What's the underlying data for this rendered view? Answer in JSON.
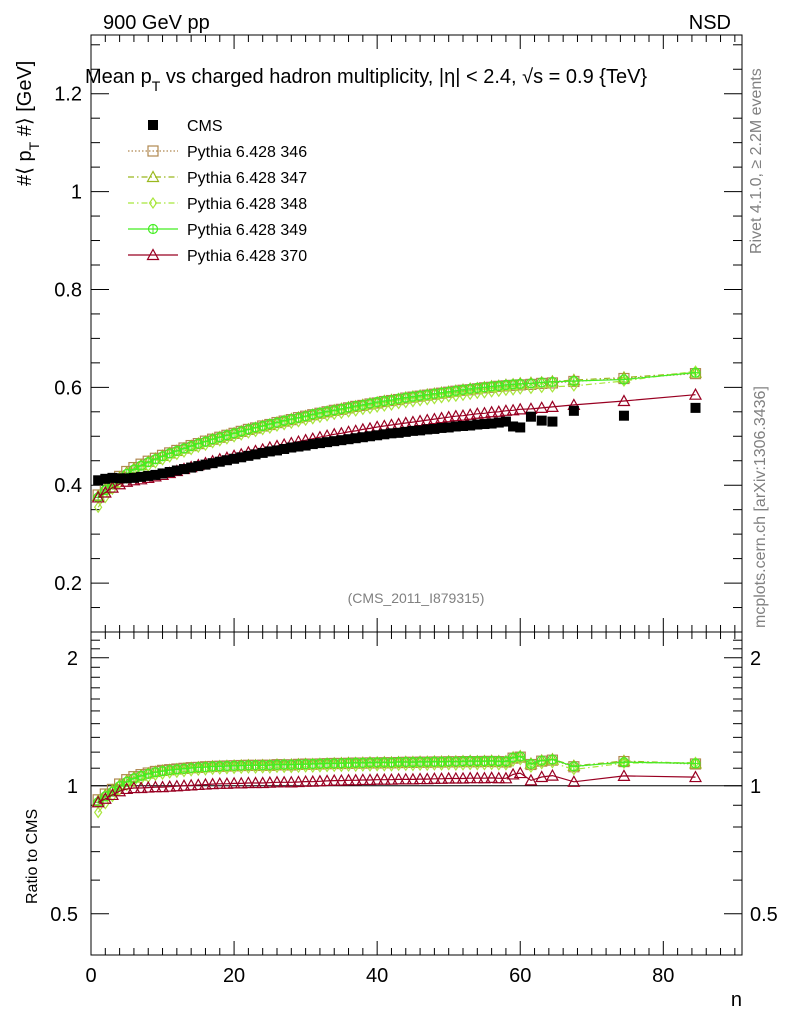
{
  "header": {
    "left": "900 GeV pp",
    "right": "NSD"
  },
  "title": {
    "prefix": "Mean p",
    "sub": "T",
    "rest": " vs charged hadron multiplicity, |η| < 2.4, √s = 0.9 {TeV}"
  },
  "side_labels": {
    "rivet": "Rivet 4.1.0, ≥ 2.2M events",
    "mcplots": "mcplots.cern.ch [arXiv:1306.3436]"
  },
  "analysis_tag": "(CMS_2011_I879315)",
  "chart_data": {
    "type": "scatter",
    "title": "Mean pT vs charged hadron multiplicity, |η| < 2.4, √s = 0.9 {TeV}",
    "xlabel": "n",
    "ylabel": {
      "pre": "#⟨ p",
      "sub": "T",
      "post": " #⟩ [GeV]"
    },
    "ratio_ylabel": "Ratio to CMS",
    "xlim": [
      0,
      91
    ],
    "ylim": [
      0.1,
      1.32
    ],
    "ratio_ylim": [
      0.4,
      2.3
    ],
    "x_ticks": [
      0,
      20,
      40,
      60,
      80
    ],
    "x_tick_labels": [
      "0",
      "20",
      "40",
      "60",
      "80"
    ],
    "y_ticks": [
      0.2,
      0.4,
      0.6,
      0.8,
      1.0,
      1.2
    ],
    "y_tick_labels": [
      "0.2",
      "0.4",
      "0.6",
      "0.8",
      "1",
      "1.2"
    ],
    "ratio_ticks": [
      0.5,
      1.0,
      2.0
    ],
    "ratio_tick_labels": [
      "0.5",
      "1",
      "2"
    ],
    "x": [
      1,
      2,
      3,
      4,
      5,
      6,
      7,
      8,
      9,
      10,
      11,
      12,
      13,
      14,
      15,
      16,
      17,
      18,
      19,
      20,
      21,
      22,
      23,
      24,
      25,
      26,
      27,
      28,
      29,
      30,
      31,
      32,
      33,
      34,
      35,
      36,
      37,
      38,
      39,
      40,
      41,
      42,
      43,
      44,
      45,
      46,
      47,
      48,
      49,
      50,
      51,
      52,
      53,
      54,
      55,
      56,
      57,
      58,
      59,
      60,
      61.5,
      63,
      64.5,
      67.5,
      74.5,
      84.5
    ],
    "series": [
      {
        "name": "CMS",
        "color": "#000000",
        "marker": "filled-square",
        "line": "none",
        "values": [
          0.41,
          0.413,
          0.415,
          0.414,
          0.414,
          0.415,
          0.417,
          0.419,
          0.421,
          0.424,
          0.427,
          0.43,
          0.433,
          0.436,
          0.439,
          0.442,
          0.445,
          0.448,
          0.451,
          0.454,
          0.457,
          0.46,
          0.463,
          0.466,
          0.469,
          0.471,
          0.474,
          0.477,
          0.479,
          0.481,
          0.484,
          0.486,
          0.488,
          0.49,
          0.492,
          0.494,
          0.496,
          0.498,
          0.5,
          0.502,
          0.504,
          0.506,
          0.507,
          0.509,
          0.511,
          0.512,
          0.514,
          0.515,
          0.517,
          0.518,
          0.52,
          0.521,
          0.522,
          0.524,
          0.525,
          0.526,
          0.528,
          0.53,
          0.52,
          0.518,
          0.54,
          0.532,
          0.53,
          0.552,
          0.542,
          0.558
        ]
      },
      {
        "name": "Pythia 6.428 346",
        "color": "#b08850",
        "marker": "open-square",
        "line": "dotted",
        "values": [
          0.38,
          0.395,
          0.407,
          0.418,
          0.428,
          0.436,
          0.443,
          0.449,
          0.455,
          0.461,
          0.466,
          0.471,
          0.476,
          0.481,
          0.485,
          0.49,
          0.494,
          0.498,
          0.502,
          0.506,
          0.51,
          0.514,
          0.517,
          0.521,
          0.524,
          0.528,
          0.531,
          0.534,
          0.538,
          0.541,
          0.544,
          0.547,
          0.55,
          0.553,
          0.555,
          0.558,
          0.561,
          0.563,
          0.566,
          0.568,
          0.571,
          0.573,
          0.575,
          0.578,
          0.58,
          0.582,
          0.584,
          0.586,
          0.588,
          0.59,
          0.592,
          0.594,
          0.595,
          0.597,
          0.599,
          0.6,
          0.602,
          0.603,
          0.604,
          0.605,
          0.606,
          0.608,
          0.609,
          0.612,
          0.618,
          0.628
        ]
      },
      {
        "name": "Pythia 6.428 347",
        "color": "#9ab81e",
        "marker": "open-triangle",
        "line": "dashdot",
        "values": [
          0.378,
          0.393,
          0.405,
          0.416,
          0.426,
          0.434,
          0.441,
          0.448,
          0.454,
          0.46,
          0.465,
          0.47,
          0.475,
          0.48,
          0.485,
          0.489,
          0.494,
          0.498,
          0.502,
          0.506,
          0.51,
          0.514,
          0.517,
          0.521,
          0.524,
          0.528,
          0.531,
          0.535,
          0.538,
          0.541,
          0.544,
          0.547,
          0.55,
          0.553,
          0.556,
          0.559,
          0.561,
          0.564,
          0.567,
          0.569,
          0.572,
          0.574,
          0.576,
          0.579,
          0.581,
          0.583,
          0.585,
          0.587,
          0.589,
          0.591,
          0.593,
          0.595,
          0.597,
          0.598,
          0.6,
          0.602,
          0.603,
          0.605,
          0.606,
          0.608,
          0.609,
          0.61,
          0.612,
          0.615,
          0.62,
          0.63
        ]
      },
      {
        "name": "Pythia 6.428 348",
        "color": "#a8e63c",
        "marker": "open-diamond",
        "line": "dashdot",
        "values": [
          0.355,
          0.375,
          0.392,
          0.405,
          0.415,
          0.424,
          0.432,
          0.439,
          0.446,
          0.452,
          0.458,
          0.463,
          0.468,
          0.473,
          0.478,
          0.482,
          0.487,
          0.491,
          0.495,
          0.499,
          0.503,
          0.507,
          0.51,
          0.514,
          0.517,
          0.521,
          0.524,
          0.527,
          0.53,
          0.533,
          0.536,
          0.539,
          0.542,
          0.545,
          0.547,
          0.55,
          0.552,
          0.555,
          0.557,
          0.56,
          0.562,
          0.564,
          0.567,
          0.569,
          0.571,
          0.573,
          0.575,
          0.577,
          0.579,
          0.581,
          0.582,
          0.584,
          0.586,
          0.588,
          0.589,
          0.591,
          0.592,
          0.594,
          0.595,
          0.597,
          0.598,
          0.6,
          0.601,
          0.603,
          0.613,
          0.633
        ]
      },
      {
        "name": "Pythia 6.428 349",
        "color": "#44ee22",
        "marker": "open-circle-plus",
        "line": "solid",
        "values": [
          0.375,
          0.39,
          0.402,
          0.413,
          0.423,
          0.432,
          0.44,
          0.447,
          0.453,
          0.459,
          0.465,
          0.47,
          0.475,
          0.48,
          0.485,
          0.489,
          0.494,
          0.498,
          0.502,
          0.506,
          0.51,
          0.514,
          0.518,
          0.521,
          0.525,
          0.528,
          0.532,
          0.535,
          0.538,
          0.541,
          0.545,
          0.548,
          0.551,
          0.553,
          0.556,
          0.559,
          0.562,
          0.564,
          0.567,
          0.57,
          0.572,
          0.574,
          0.577,
          0.579,
          0.581,
          0.583,
          0.585,
          0.587,
          0.589,
          0.591,
          0.593,
          0.595,
          0.597,
          0.599,
          0.6,
          0.602,
          0.603,
          0.605,
          0.606,
          0.607,
          0.608,
          0.61,
          0.611,
          0.613,
          0.616,
          0.63
        ]
      },
      {
        "name": "Pythia 6.428 370",
        "color": "#990022",
        "marker": "open-triangle",
        "line": "solid",
        "values": [
          0.375,
          0.385,
          0.395,
          0.402,
          0.407,
          0.41,
          0.412,
          0.415,
          0.418,
          0.421,
          0.425,
          0.429,
          0.433,
          0.437,
          0.441,
          0.445,
          0.449,
          0.453,
          0.456,
          0.46,
          0.463,
          0.467,
          0.47,
          0.473,
          0.477,
          0.48,
          0.483,
          0.486,
          0.489,
          0.492,
          0.495,
          0.498,
          0.501,
          0.504,
          0.506,
          0.509,
          0.511,
          0.514,
          0.516,
          0.519,
          0.521,
          0.523,
          0.525,
          0.527,
          0.529,
          0.531,
          0.533,
          0.535,
          0.537,
          0.539,
          0.541,
          0.542,
          0.544,
          0.546,
          0.547,
          0.549,
          0.55,
          0.552,
          0.553,
          0.555,
          0.556,
          0.558,
          0.56,
          0.564,
          0.572,
          0.585
        ]
      }
    ]
  }
}
